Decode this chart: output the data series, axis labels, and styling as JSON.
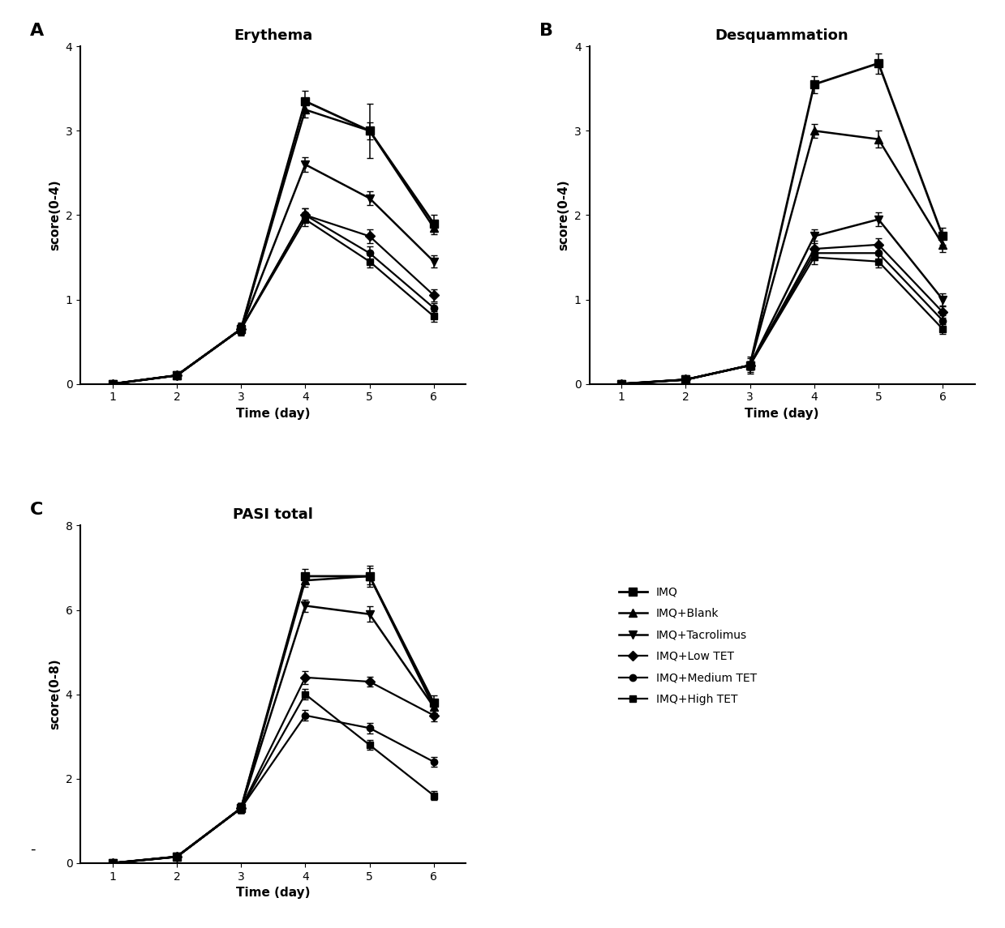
{
  "x": [
    1,
    2,
    3,
    4,
    5,
    6
  ],
  "erythema": {
    "title": "Erythema",
    "ylabel": "score(0-4)",
    "xlabel": "Time (day)",
    "ylim": [
      0,
      4
    ],
    "yticks": [
      0,
      1,
      2,
      3,
      4
    ],
    "series": {
      "IMQ": {
        "y": [
          0.0,
          0.1,
          0.65,
          3.35,
          3.0,
          1.9
        ],
        "yerr": [
          0.02,
          0.03,
          0.08,
          0.12,
          0.32,
          0.1
        ]
      },
      "IMQ+Blank": {
        "y": [
          0.0,
          0.1,
          0.65,
          3.25,
          3.0,
          1.85
        ],
        "yerr": [
          0.02,
          0.03,
          0.07,
          0.09,
          0.1,
          0.08
        ]
      },
      "IMQ+Tacrolimus": {
        "y": [
          0.0,
          0.1,
          0.65,
          2.6,
          2.2,
          1.45
        ],
        "yerr": [
          0.02,
          0.03,
          0.06,
          0.09,
          0.08,
          0.07
        ]
      },
      "IMQ+Low TET": {
        "y": [
          0.0,
          0.1,
          0.65,
          2.0,
          1.75,
          1.05
        ],
        "yerr": [
          0.02,
          0.03,
          0.06,
          0.08,
          0.08,
          0.07
        ]
      },
      "IMQ+Medium TET": {
        "y": [
          0.0,
          0.1,
          0.65,
          2.0,
          1.55,
          0.9
        ],
        "yerr": [
          0.02,
          0.03,
          0.06,
          0.08,
          0.08,
          0.06
        ]
      },
      "IMQ+High TET": {
        "y": [
          0.0,
          0.1,
          0.65,
          1.95,
          1.45,
          0.8
        ],
        "yerr": [
          0.02,
          0.03,
          0.06,
          0.08,
          0.07,
          0.06
        ]
      }
    }
  },
  "desquammation": {
    "title": "Desquammation",
    "ylabel": "score(0-4)",
    "xlabel": "Time (day)",
    "ylim": [
      0,
      4
    ],
    "yticks": [
      0,
      1,
      2,
      3,
      4
    ],
    "series": {
      "IMQ": {
        "y": [
          0.0,
          0.05,
          0.22,
          3.55,
          3.8,
          1.75
        ],
        "yerr": [
          0.02,
          0.02,
          0.1,
          0.1,
          0.12,
          0.1
        ]
      },
      "IMQ+Blank": {
        "y": [
          0.0,
          0.05,
          0.22,
          3.0,
          2.9,
          1.65
        ],
        "yerr": [
          0.02,
          0.02,
          0.08,
          0.08,
          0.1,
          0.09
        ]
      },
      "IMQ+Tacrolimus": {
        "y": [
          0.0,
          0.05,
          0.22,
          1.75,
          1.95,
          1.0
        ],
        "yerr": [
          0.02,
          0.02,
          0.05,
          0.08,
          0.08,
          0.07
        ]
      },
      "IMQ+Low TET": {
        "y": [
          0.0,
          0.05,
          0.22,
          1.6,
          1.65,
          0.85
        ],
        "yerr": [
          0.02,
          0.02,
          0.05,
          0.1,
          0.08,
          0.07
        ]
      },
      "IMQ+Medium TET": {
        "y": [
          0.0,
          0.05,
          0.22,
          1.55,
          1.55,
          0.75
        ],
        "yerr": [
          0.02,
          0.02,
          0.05,
          0.08,
          0.07,
          0.06
        ]
      },
      "IMQ+High TET": {
        "y": [
          0.0,
          0.05,
          0.22,
          1.5,
          1.45,
          0.65
        ],
        "yerr": [
          0.02,
          0.02,
          0.05,
          0.08,
          0.07,
          0.06
        ]
      }
    }
  },
  "pasi": {
    "title": "PASI total",
    "ylabel": "score(0-8)",
    "xlabel": "Time (day)",
    "ylim": [
      0,
      8
    ],
    "yticks": [
      0,
      2,
      4,
      6,
      8
    ],
    "series": {
      "IMQ": {
        "y": [
          0.0,
          0.15,
          1.3,
          6.8,
          6.8,
          3.8
        ],
        "yerr": [
          0.02,
          0.04,
          0.12,
          0.18,
          0.25,
          0.18
        ]
      },
      "IMQ+Blank": {
        "y": [
          0.0,
          0.15,
          1.3,
          6.7,
          6.8,
          3.7
        ],
        "yerr": [
          0.02,
          0.04,
          0.12,
          0.15,
          0.2,
          0.15
        ]
      },
      "IMQ+Tacrolimus": {
        "y": [
          0.0,
          0.15,
          1.3,
          6.1,
          5.9,
          3.7
        ],
        "yerr": [
          0.02,
          0.04,
          0.12,
          0.15,
          0.18,
          0.15
        ]
      },
      "IMQ+Low TET": {
        "y": [
          0.0,
          0.15,
          1.3,
          4.4,
          4.3,
          3.5
        ],
        "yerr": [
          0.02,
          0.04,
          0.12,
          0.15,
          0.12,
          0.15
        ]
      },
      "IMQ+Medium TET": {
        "y": [
          0.0,
          0.15,
          1.3,
          3.5,
          3.2,
          2.4
        ],
        "yerr": [
          0.02,
          0.04,
          0.12,
          0.12,
          0.12,
          0.12
        ]
      },
      "IMQ+High TET": {
        "y": [
          0.0,
          0.15,
          1.3,
          4.0,
          2.8,
          1.6
        ],
        "yerr": [
          0.02,
          0.04,
          0.12,
          0.12,
          0.12,
          0.1
        ]
      }
    }
  },
  "series_order": [
    "IMQ",
    "IMQ+Blank",
    "IMQ+Tacrolimus",
    "IMQ+Low TET",
    "IMQ+Medium TET",
    "IMQ+High TET"
  ],
  "markers": {
    "IMQ": "s",
    "IMQ+Blank": "^",
    "IMQ+Tacrolimus": "v",
    "IMQ+Low TET": "D",
    "IMQ+Medium TET": "o",
    "IMQ+High TET": "s"
  },
  "markersizes": {
    "IMQ": 7,
    "IMQ+Blank": 7,
    "IMQ+Tacrolimus": 7,
    "IMQ+Low TET": 6,
    "IMQ+Medium TET": 6,
    "IMQ+High TET": 6
  },
  "linewidths": {
    "IMQ": 2.0,
    "IMQ+Blank": 1.8,
    "IMQ+Tacrolimus": 1.8,
    "IMQ+Low TET": 1.6,
    "IMQ+Medium TET": 1.6,
    "IMQ+High TET": 1.6
  },
  "panel_labels": [
    "A",
    "B",
    "C"
  ],
  "background_color": "#ffffff",
  "line_color": "#000000",
  "title_fontsize": 13,
  "label_fontsize": 11,
  "tick_fontsize": 10,
  "legend_fontsize": 10,
  "panel_label_fontsize": 16
}
